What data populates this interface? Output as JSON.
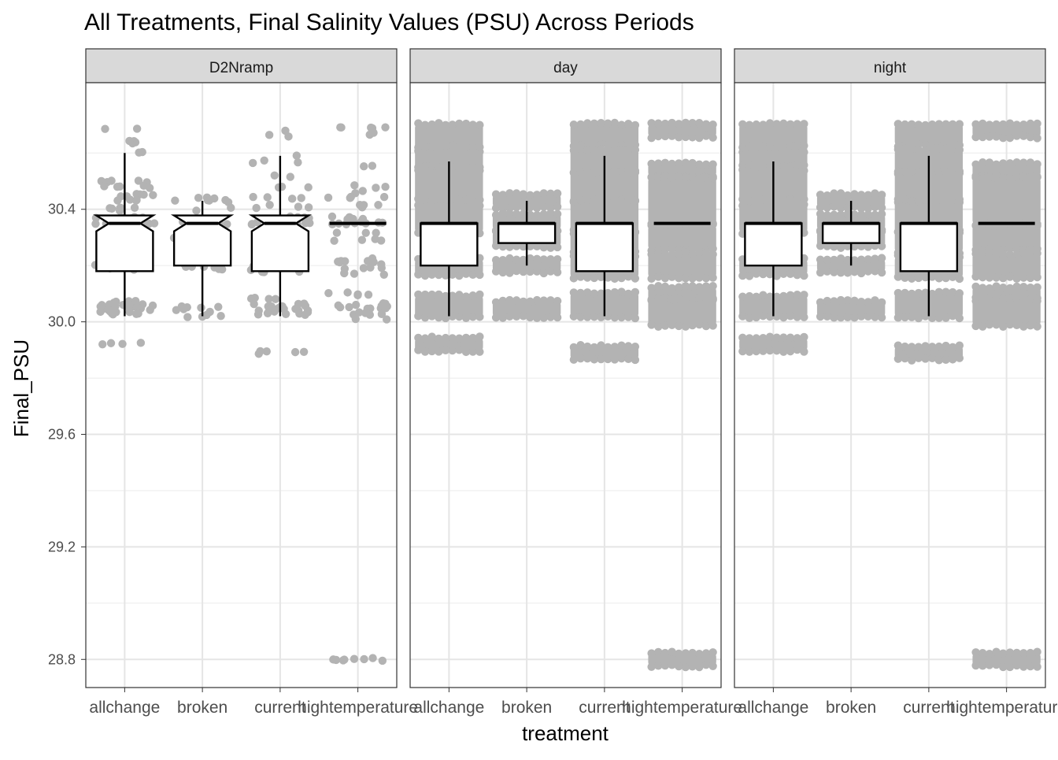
{
  "chart_data": {
    "type": "boxplot",
    "title": "All Treatments, Final Salinity Values (PSU) Across Periods",
    "xlabel": "treatment",
    "ylabel": "Final_PSU",
    "ylim": [
      28.7,
      30.85
    ],
    "yticks": [
      28.8,
      29.2,
      29.6,
      30.0,
      30.4
    ],
    "ytick_labels": [
      "28.8",
      "29.2",
      "29.6",
      "30.0",
      "30.4"
    ],
    "grid": true,
    "categories": [
      "allchange",
      "broken",
      "current",
      "hightemperature"
    ],
    "point_color": "#b3b3b3",
    "facets": [
      {
        "label": "D2Nramp",
        "boxes": [
          {
            "category": "allchange",
            "whisker_low": 30.02,
            "q1": 30.18,
            "median": 30.35,
            "q3": 30.35,
            "whisker_high": 30.6,
            "notch": true
          },
          {
            "category": "broken",
            "whisker_low": 30.02,
            "q1": 30.2,
            "median": 30.35,
            "q3": 30.37,
            "whisker_high": 30.43,
            "notch": true
          },
          {
            "category": "current",
            "whisker_low": 30.02,
            "q1": 30.18,
            "median": 30.35,
            "q3": 30.35,
            "whisker_high": 30.59,
            "notch": true
          },
          {
            "category": "hightemperature",
            "whisker_low": 30.35,
            "q1": 30.35,
            "median": 30.35,
            "q3": 30.35,
            "whisker_high": 30.35,
            "notch": false
          }
        ],
        "points": {
          "allchange": [
            [
              30.64,
              3
            ],
            [
              30.69,
              2
            ],
            [
              30.6,
              2
            ],
            [
              30.64,
              1
            ],
            [
              30.5,
              5
            ],
            [
              30.48,
              5
            ],
            [
              30.45,
              6
            ],
            [
              30.43,
              4
            ],
            [
              30.4,
              6
            ],
            [
              30.37,
              6
            ],
            [
              30.35,
              10
            ],
            [
              30.3,
              3
            ],
            [
              30.25,
              3
            ],
            [
              30.2,
              5
            ],
            [
              30.19,
              5
            ],
            [
              30.07,
              5
            ],
            [
              30.06,
              6
            ],
            [
              30.05,
              8
            ],
            [
              30.04,
              6
            ],
            [
              30.03,
              4
            ],
            [
              29.92,
              4
            ]
          ],
          "broken": [
            [
              30.44,
              3
            ],
            [
              30.43,
              5
            ],
            [
              30.4,
              2
            ],
            [
              30.36,
              4
            ],
            [
              30.35,
              6
            ],
            [
              30.3,
              3
            ],
            [
              30.2,
              5
            ],
            [
              30.19,
              3
            ],
            [
              30.05,
              4
            ],
            [
              30.04,
              3
            ],
            [
              30.02,
              4
            ]
          ],
          "current": [
            [
              30.66,
              2
            ],
            [
              30.68,
              1
            ],
            [
              30.59,
              1
            ],
            [
              30.57,
              3
            ],
            [
              30.52,
              2
            ],
            [
              30.48,
              3
            ],
            [
              30.44,
              4
            ],
            [
              30.41,
              4
            ],
            [
              30.37,
              6
            ],
            [
              30.35,
              10
            ],
            [
              30.3,
              3
            ],
            [
              30.25,
              3
            ],
            [
              30.2,
              6
            ],
            [
              30.18,
              5
            ],
            [
              30.08,
              4
            ],
            [
              30.06,
              6
            ],
            [
              30.05,
              8
            ],
            [
              30.04,
              6
            ],
            [
              30.03,
              6
            ],
            [
              29.89,
              5
            ]
          ],
          "hightemperature": [
            [
              30.69,
              5
            ],
            [
              30.67,
              2
            ],
            [
              30.55,
              2
            ],
            [
              30.48,
              3
            ],
            [
              30.46,
              2
            ],
            [
              30.44,
              4
            ],
            [
              30.41,
              4
            ],
            [
              30.37,
              5
            ],
            [
              30.35,
              10
            ],
            [
              30.32,
              3
            ],
            [
              30.29,
              4
            ],
            [
              30.22,
              4
            ],
            [
              30.21,
              4
            ],
            [
              30.19,
              4
            ],
            [
              30.17,
              3
            ],
            [
              30.1,
              5
            ],
            [
              30.06,
              6
            ],
            [
              30.05,
              6
            ],
            [
              30.03,
              5
            ],
            [
              30.01,
              2
            ],
            [
              28.8,
              8
            ]
          ]
        }
      },
      {
        "label": "day",
        "boxes": [
          {
            "category": "allchange",
            "whisker_low": 30.02,
            "q1": 30.2,
            "median": 30.35,
            "q3": 30.35,
            "whisker_high": 30.57,
            "notch": false
          },
          {
            "category": "broken",
            "whisker_low": 30.2,
            "q1": 30.28,
            "median": 30.35,
            "q3": 30.35,
            "whisker_high": 30.43,
            "notch": false
          },
          {
            "category": "current",
            "whisker_low": 30.02,
            "q1": 30.18,
            "median": 30.35,
            "q3": 30.35,
            "whisker_high": 30.59,
            "notch": false
          },
          {
            "category": "hightemperature",
            "whisker_low": 30.35,
            "q1": 30.35,
            "median": 30.35,
            "q3": 30.35,
            "whisker_high": 30.35,
            "notch": false
          }
        ],
        "bands": {
          "allchange": [
            [
              30.62,
              30.69
            ],
            [
              30.55,
              30.61
            ],
            [
              30.43,
              30.54
            ],
            [
              30.33,
              30.42
            ],
            [
              30.18,
              30.21
            ],
            [
              30.03,
              30.08
            ],
            [
              29.91,
              29.93
            ]
          ],
          "broken": [
            [
              30.42,
              30.44
            ],
            [
              30.34,
              30.37
            ],
            [
              30.28,
              30.31
            ],
            [
              30.19,
              30.21
            ],
            [
              30.03,
              30.06
            ]
          ],
          "current": [
            [
              30.64,
              30.69
            ],
            [
              30.54,
              30.6
            ],
            [
              30.44,
              30.52
            ],
            [
              30.33,
              30.42
            ],
            [
              30.26,
              30.31
            ],
            [
              30.17,
              30.22
            ],
            [
              30.03,
              30.09
            ],
            [
              29.88,
              29.9
            ]
          ],
          "hightemperature": [
            [
              30.67,
              30.69
            ],
            [
              30.53,
              30.55
            ],
            [
              30.36,
              30.5
            ],
            [
              30.27,
              30.33
            ],
            [
              30.17,
              30.23
            ],
            [
              30.09,
              30.11
            ],
            [
              30.0,
              30.07
            ],
            [
              28.79,
              28.81
            ]
          ]
        }
      },
      {
        "label": "night",
        "boxes": [
          {
            "category": "allchange",
            "whisker_low": 30.02,
            "q1": 30.2,
            "median": 30.35,
            "q3": 30.35,
            "whisker_high": 30.57,
            "notch": false
          },
          {
            "category": "broken",
            "whisker_low": 30.2,
            "q1": 30.28,
            "median": 30.35,
            "q3": 30.35,
            "whisker_high": 30.43,
            "notch": false
          },
          {
            "category": "current",
            "whisker_low": 30.02,
            "q1": 30.18,
            "median": 30.35,
            "q3": 30.35,
            "whisker_high": 30.59,
            "notch": false
          },
          {
            "category": "hightemperature",
            "whisker_low": 30.35,
            "q1": 30.35,
            "median": 30.35,
            "q3": 30.35,
            "whisker_high": 30.35,
            "notch": false
          }
        ],
        "bands": {
          "allchange": [
            [
              30.62,
              30.69
            ],
            [
              30.55,
              30.61
            ],
            [
              30.43,
              30.54
            ],
            [
              30.33,
              30.42
            ],
            [
              30.18,
              30.21
            ],
            [
              30.03,
              30.08
            ],
            [
              29.91,
              29.93
            ]
          ],
          "broken": [
            [
              30.42,
              30.44
            ],
            [
              30.34,
              30.37
            ],
            [
              30.28,
              30.31
            ],
            [
              30.19,
              30.21
            ],
            [
              30.03,
              30.06
            ]
          ],
          "current": [
            [
              30.64,
              30.69
            ],
            [
              30.54,
              30.6
            ],
            [
              30.44,
              30.52
            ],
            [
              30.33,
              30.42
            ],
            [
              30.26,
              30.31
            ],
            [
              30.17,
              30.22
            ],
            [
              30.03,
              30.09
            ],
            [
              29.88,
              29.9
            ]
          ],
          "hightemperature": [
            [
              30.67,
              30.69
            ],
            [
              30.53,
              30.55
            ],
            [
              30.36,
              30.5
            ],
            [
              30.27,
              30.33
            ],
            [
              30.17,
              30.23
            ],
            [
              30.09,
              30.11
            ],
            [
              30.0,
              30.07
            ],
            [
              28.79,
              28.81
            ]
          ]
        }
      }
    ]
  }
}
